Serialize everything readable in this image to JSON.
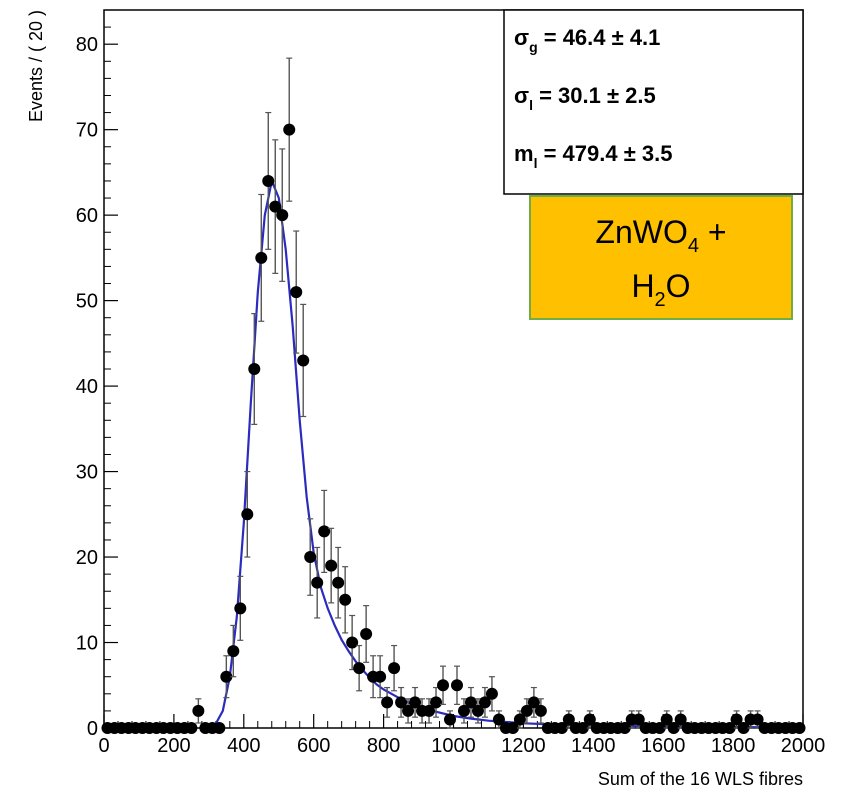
{
  "chart_data": {
    "type": "scatter",
    "xlabel": "Sum of the 16 WLS fibres",
    "ylabel": "Events / ( 20 )",
    "xlim": [
      0,
      2000
    ],
    "ylim": [
      0,
      84
    ],
    "x_ticks": [
      "0",
      "200",
      "400",
      "600",
      "800",
      "1000",
      "1200",
      "1400",
      "1600",
      "1800",
      "2000"
    ],
    "y_ticks": [
      "0",
      "10",
      "20",
      "30",
      "40",
      "50",
      "60",
      "70",
      "80"
    ],
    "grid": false,
    "series": [
      {
        "kind": "histogram-points-with-error-bars",
        "color": "#000000",
        "points": [
          {
            "x": 10,
            "y": 0
          },
          {
            "x": 30,
            "y": 0
          },
          {
            "x": 50,
            "y": 0
          },
          {
            "x": 70,
            "y": 0
          },
          {
            "x": 90,
            "y": 0
          },
          {
            "x": 110,
            "y": 0
          },
          {
            "x": 130,
            "y": 0
          },
          {
            "x": 150,
            "y": 0
          },
          {
            "x": 170,
            "y": 0
          },
          {
            "x": 190,
            "y": 0
          },
          {
            "x": 210,
            "y": 0
          },
          {
            "x": 230,
            "y": 0
          },
          {
            "x": 250,
            "y": 0
          },
          {
            "x": 270,
            "y": 2
          },
          {
            "x": 290,
            "y": 0
          },
          {
            "x": 310,
            "y": 0
          },
          {
            "x": 330,
            "y": 0
          },
          {
            "x": 350,
            "y": 6
          },
          {
            "x": 370,
            "y": 9
          },
          {
            "x": 390,
            "y": 14
          },
          {
            "x": 410,
            "y": 25
          },
          {
            "x": 430,
            "y": 42
          },
          {
            "x": 450,
            "y": 55
          },
          {
            "x": 470,
            "y": 64
          },
          {
            "x": 490,
            "y": 61
          },
          {
            "x": 510,
            "y": 60
          },
          {
            "x": 530,
            "y": 70
          },
          {
            "x": 550,
            "y": 51
          },
          {
            "x": 570,
            "y": 43
          },
          {
            "x": 590,
            "y": 20
          },
          {
            "x": 610,
            "y": 17
          },
          {
            "x": 630,
            "y": 23
          },
          {
            "x": 650,
            "y": 19
          },
          {
            "x": 670,
            "y": 17
          },
          {
            "x": 690,
            "y": 15
          },
          {
            "x": 710,
            "y": 10
          },
          {
            "x": 730,
            "y": 7
          },
          {
            "x": 750,
            "y": 11
          },
          {
            "x": 770,
            "y": 6
          },
          {
            "x": 790,
            "y": 6
          },
          {
            "x": 810,
            "y": 3
          },
          {
            "x": 830,
            "y": 7
          },
          {
            "x": 850,
            "y": 3
          },
          {
            "x": 870,
            "y": 2
          },
          {
            "x": 890,
            "y": 3
          },
          {
            "x": 910,
            "y": 2
          },
          {
            "x": 930,
            "y": 2
          },
          {
            "x": 950,
            "y": 3
          },
          {
            "x": 970,
            "y": 5
          },
          {
            "x": 990,
            "y": 1
          },
          {
            "x": 1010,
            "y": 5
          },
          {
            "x": 1030,
            "y": 2
          },
          {
            "x": 1050,
            "y": 3
          },
          {
            "x": 1070,
            "y": 2
          },
          {
            "x": 1090,
            "y": 3
          },
          {
            "x": 1110,
            "y": 4
          },
          {
            "x": 1130,
            "y": 1
          },
          {
            "x": 1150,
            "y": 0
          },
          {
            "x": 1170,
            "y": 0
          },
          {
            "x": 1190,
            "y": 1
          },
          {
            "x": 1210,
            "y": 2
          },
          {
            "x": 1230,
            "y": 3
          },
          {
            "x": 1250,
            "y": 2
          },
          {
            "x": 1270,
            "y": 0
          },
          {
            "x": 1290,
            "y": 0
          },
          {
            "x": 1310,
            "y": 0
          },
          {
            "x": 1330,
            "y": 1
          },
          {
            "x": 1350,
            "y": 0
          },
          {
            "x": 1370,
            "y": 0
          },
          {
            "x": 1390,
            "y": 1
          },
          {
            "x": 1410,
            "y": 0
          },
          {
            "x": 1430,
            "y": 0
          },
          {
            "x": 1450,
            "y": 0
          },
          {
            "x": 1470,
            "y": 0
          },
          {
            "x": 1490,
            "y": 0
          },
          {
            "x": 1510,
            "y": 1
          },
          {
            "x": 1530,
            "y": 1
          },
          {
            "x": 1550,
            "y": 0
          },
          {
            "x": 1570,
            "y": 0
          },
          {
            "x": 1590,
            "y": 0
          },
          {
            "x": 1610,
            "y": 1
          },
          {
            "x": 1630,
            "y": 0
          },
          {
            "x": 1650,
            "y": 1
          },
          {
            "x": 1670,
            "y": 0
          },
          {
            "x": 1690,
            "y": 0
          },
          {
            "x": 1710,
            "y": 0
          },
          {
            "x": 1730,
            "y": 0
          },
          {
            "x": 1750,
            "y": 0
          },
          {
            "x": 1770,
            "y": 0
          },
          {
            "x": 1790,
            "y": 0
          },
          {
            "x": 1810,
            "y": 1
          },
          {
            "x": 1830,
            "y": 0
          },
          {
            "x": 1850,
            "y": 1
          },
          {
            "x": 1870,
            "y": 1
          },
          {
            "x": 1890,
            "y": 0
          },
          {
            "x": 1910,
            "y": 0
          },
          {
            "x": 1930,
            "y": 0
          },
          {
            "x": 1950,
            "y": 0
          },
          {
            "x": 1970,
            "y": 0
          },
          {
            "x": 1990,
            "y": 0
          }
        ]
      },
      {
        "kind": "fit-curve",
        "color": "#2b2bbf",
        "points": [
          [
            300,
            0
          ],
          [
            320,
            0.5
          ],
          [
            340,
            2
          ],
          [
            360,
            6
          ],
          [
            380,
            13
          ],
          [
            400,
            24
          ],
          [
            420,
            38
          ],
          [
            440,
            51
          ],
          [
            460,
            60
          ],
          [
            480,
            64
          ],
          [
            500,
            62
          ],
          [
            520,
            56
          ],
          [
            540,
            47
          ],
          [
            560,
            36
          ],
          [
            580,
            27
          ],
          [
            600,
            20.5
          ],
          [
            620,
            16.5
          ],
          [
            640,
            14
          ],
          [
            660,
            12
          ],
          [
            680,
            10.3
          ],
          [
            700,
            9
          ],
          [
            720,
            7.8
          ],
          [
            740,
            6.8
          ],
          [
            760,
            5.9
          ],
          [
            780,
            5.1
          ],
          [
            800,
            4.5
          ],
          [
            840,
            3.6
          ],
          [
            880,
            2.8
          ],
          [
            920,
            2.2
          ],
          [
            960,
            1.8
          ],
          [
            1000,
            1.4
          ],
          [
            1050,
            1.1
          ],
          [
            1100,
            0.85
          ],
          [
            1150,
            0.7
          ],
          [
            1200,
            0.55
          ],
          [
            1300,
            0.4
          ],
          [
            1400,
            0.3
          ],
          [
            1500,
            0.22
          ],
          [
            1600,
            0.17
          ],
          [
            1700,
            0.14
          ],
          [
            1800,
            0.11
          ],
          [
            1900,
            0.09
          ],
          [
            2000,
            0.08
          ]
        ]
      }
    ]
  },
  "stats_box": {
    "rows": [
      {
        "sym": "σ",
        "sub": "g",
        "value": "=  46.4 ± 4.1"
      },
      {
        "sym": "σ",
        "sub": "l",
        "value": "=  30.1 ± 2.5"
      },
      {
        "sym": "m",
        "sub": "l",
        "value": "=  479.4 ± 3.5"
      }
    ]
  },
  "annotation": {
    "line1_main": "ZnWO",
    "line1_sub": "4",
    "line1_tail": " +",
    "line2_main": "H",
    "line2_sub": "2",
    "line2_tail": "O",
    "fill": "#ffc000",
    "border": "#70ad47"
  }
}
